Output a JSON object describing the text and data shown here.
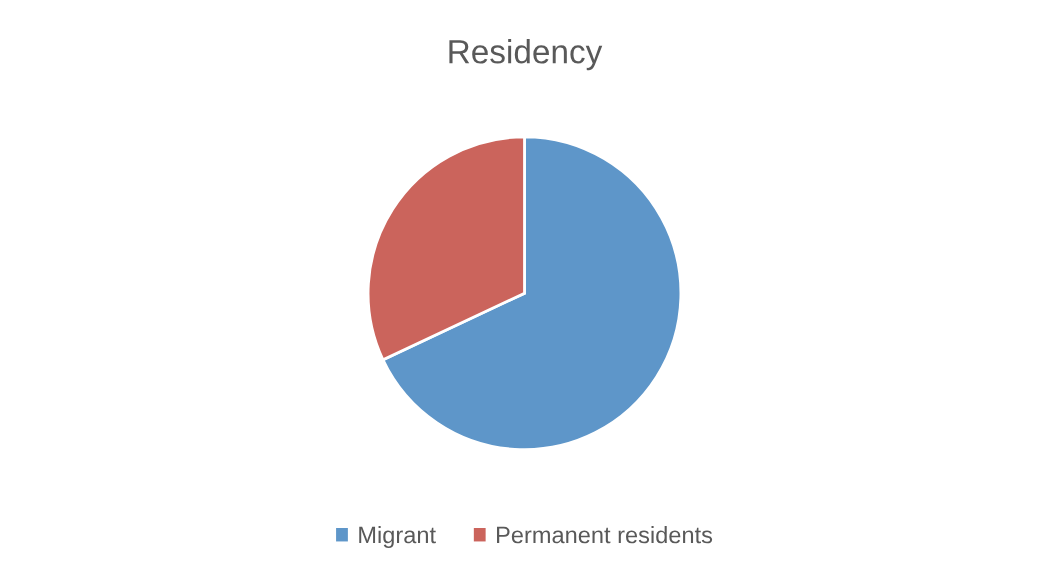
{
  "chart_data": {
    "type": "pie",
    "title": "Residency",
    "categories": [
      "Migrant",
      "Permanent residents"
    ],
    "values": [
      68,
      32
    ],
    "colors": [
      "#5e96c9",
      "#cb645c"
    ],
    "legend": "bottom"
  }
}
